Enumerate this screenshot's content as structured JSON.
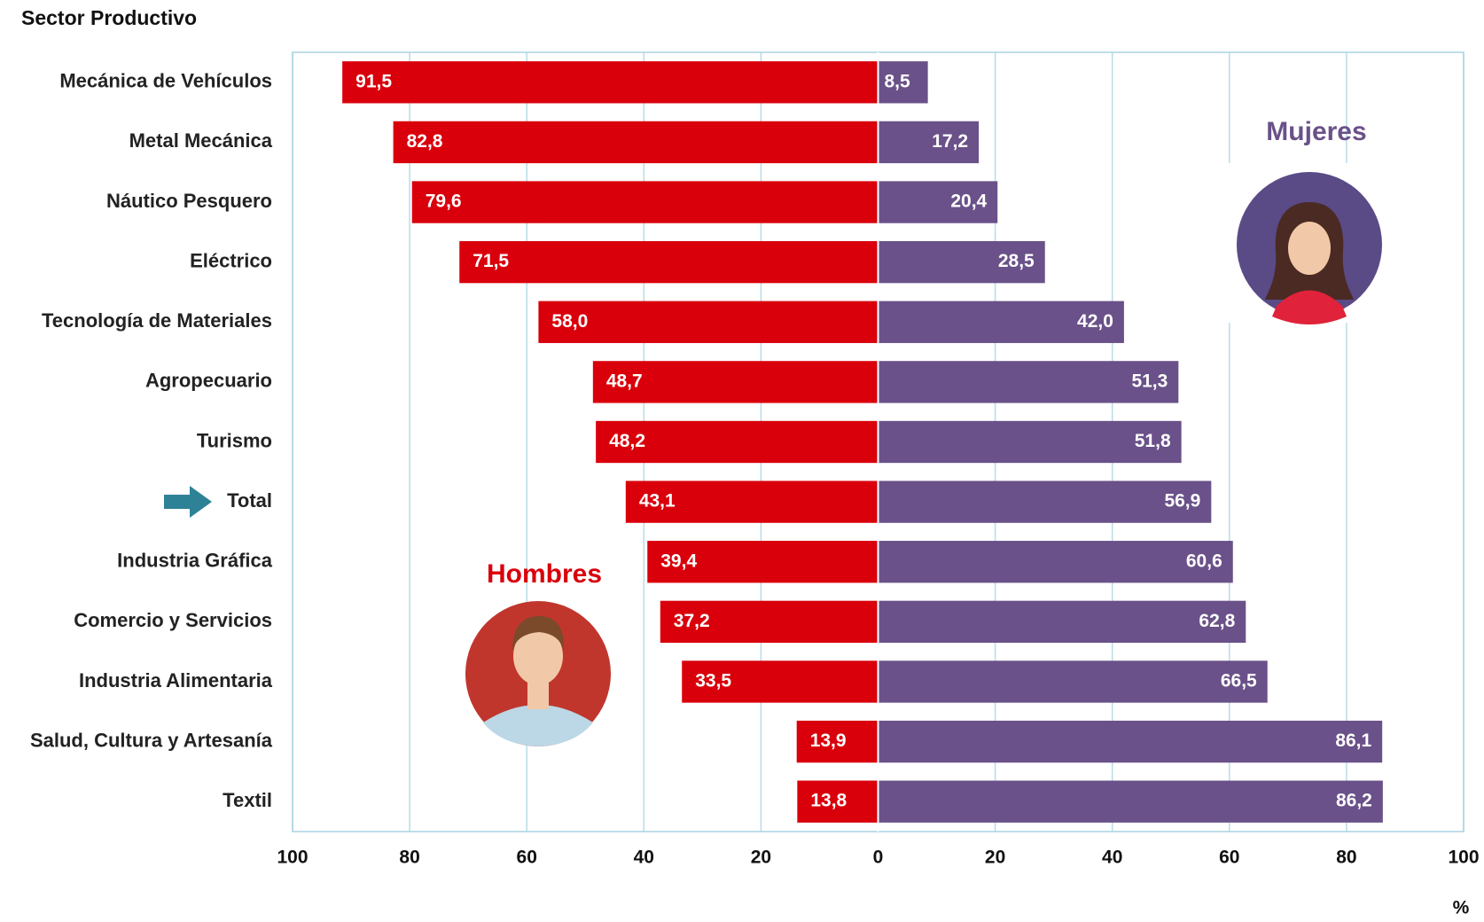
{
  "chart_data": {
    "type": "butterfly",
    "title": "Sector Productivo",
    "x_label": "%",
    "categories": [
      "Mecánica de Vehículos",
      "Metal Mecánica",
      "Náutico Pesquero",
      "Eléctrico",
      "Tecnología de Materiales",
      "Agropecuario",
      "Turismo",
      "Total",
      "Industria Gráfica",
      "Comercio y Servicios",
      "Industria Alimentaria",
      "Salud, Cultura y Artesanía",
      "Textil"
    ],
    "series": [
      {
        "name": "Hombres",
        "color": "#d9000b",
        "values": [
          91.5,
          82.8,
          79.6,
          71.5,
          58.0,
          48.7,
          48.2,
          43.1,
          39.4,
          37.2,
          33.5,
          13.9,
          13.8
        ],
        "value_labels": [
          "91,5",
          "82,8",
          "79,6",
          "71,5",
          "58,0",
          "48,7",
          "48,2",
          "43,1",
          "39,4",
          "37,2",
          "33,5",
          "13,9",
          "13,8"
        ]
      },
      {
        "name": "Mujeres",
        "color": "#6a5189",
        "values": [
          8.5,
          17.2,
          20.4,
          28.5,
          42.0,
          51.3,
          51.8,
          56.9,
          60.6,
          62.8,
          66.5,
          86.1,
          86.2
        ],
        "value_labels": [
          "8,5",
          "17,2",
          "20,4",
          "28,5",
          "42,0",
          "51,3",
          "51,8",
          "56,9",
          "60,6",
          "62,8",
          "66,5",
          "86,1",
          "86,2"
        ]
      }
    ],
    "xlim": [
      -100,
      100
    ],
    "xticks": [
      {
        "value": -100,
        "label": "100"
      },
      {
        "value": -80,
        "label": "80"
      },
      {
        "value": -60,
        "label": "60"
      },
      {
        "value": -40,
        "label": "40"
      },
      {
        "value": -20,
        "label": "20"
      },
      0,
      20,
      40,
      60,
      80,
      100
    ],
    "grid": true
  }
}
